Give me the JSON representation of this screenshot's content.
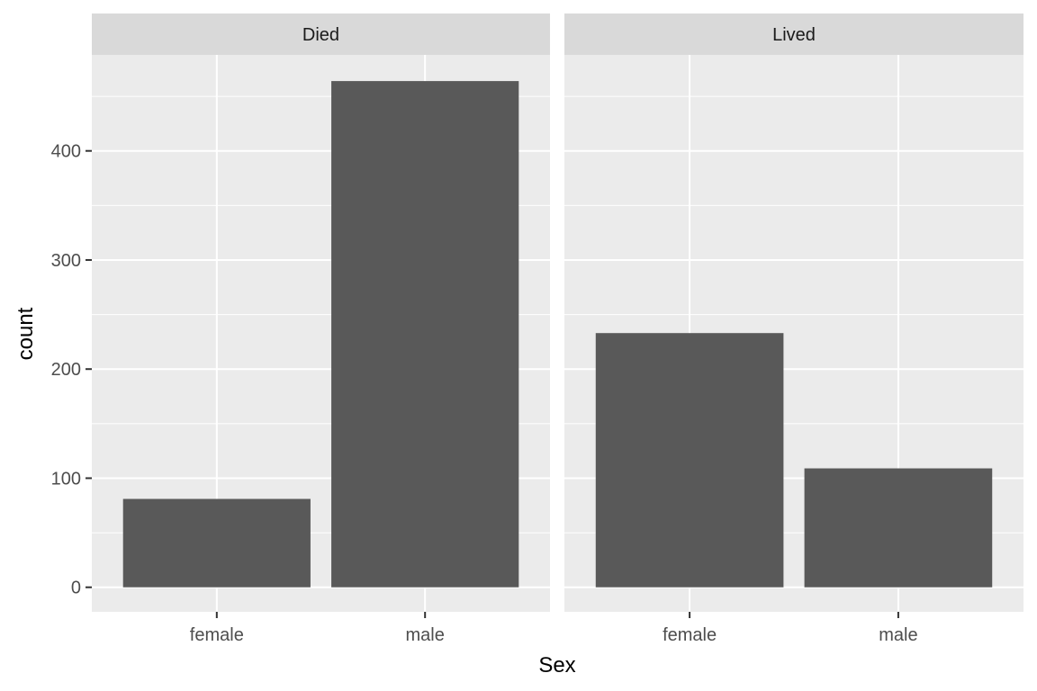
{
  "chart_data": {
    "type": "bar",
    "xlabel": "Sex",
    "ylabel": "count",
    "ylim": [
      -22.5,
      488
    ],
    "yticks": [
      0,
      100,
      200,
      300,
      400
    ],
    "grid": true,
    "facets": [
      {
        "label": "Died",
        "categories": [
          "female",
          "male"
        ],
        "values": [
          81,
          464
        ]
      },
      {
        "label": "Lived",
        "categories": [
          "female",
          "male"
        ],
        "values": [
          233,
          109
        ]
      }
    ]
  },
  "colors": {
    "panel_background": "#ebebeb",
    "strip_background": "#d9d9d9",
    "grid": "#ffffff",
    "bar_fill": "#595959",
    "tick_mark": "#333333"
  }
}
